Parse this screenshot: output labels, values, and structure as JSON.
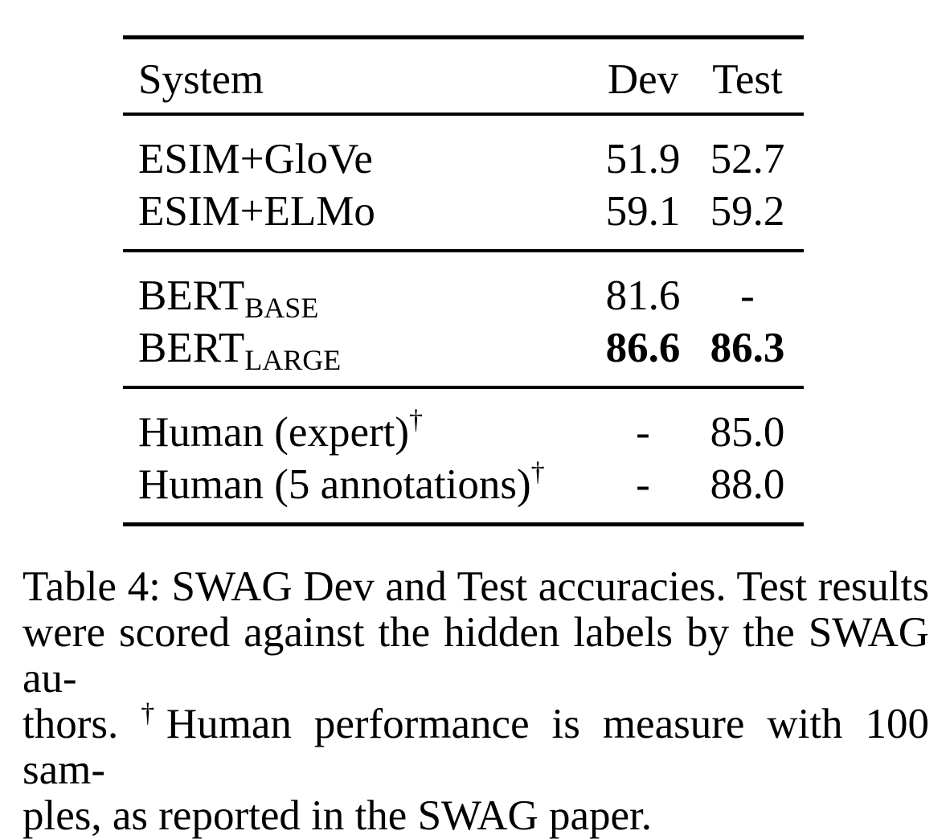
{
  "page": {
    "background_color": "#ffffff",
    "text_color": "#000000"
  },
  "table": {
    "header": {
      "system": "System",
      "dev": "Dev",
      "test": "Test"
    },
    "sections": [
      {
        "group": "baselines",
        "rows": [
          {
            "name": "ESIM+GloVe",
            "dev": "51.9",
            "test": "52.7"
          },
          {
            "name": "ESIM+ELMo",
            "dev": "59.1",
            "test": "59.2"
          }
        ]
      },
      {
        "group": "bert-models",
        "rows": [
          {
            "name": "BERT",
            "subscript": "BASE",
            "dev": "81.6",
            "test": "-"
          },
          {
            "name": "BERT",
            "subscript": "LARGE",
            "dev": "86.6",
            "test": "86.3",
            "emphasis": "bold"
          }
        ]
      },
      {
        "group": "human",
        "rows": [
          {
            "name": "Human (expert)",
            "superscript": "†",
            "dev": "-",
            "test": "85.0"
          },
          {
            "name": "Human (5 annotations)",
            "superscript": "†",
            "dev": "-",
            "test": "88.0"
          }
        ]
      }
    ]
  },
  "caption": {
    "line1": "Table 4: SWAG Dev and Test accuracies.  Test results",
    "line2": "were scored against the hidden labels by the SWAG au-",
    "line3_pre": "thors. ",
    "line3_dagger": "†",
    "line3_post": "Human performance is measure with 100 sam-",
    "line4": "ples, as reported in the SWAG paper."
  }
}
